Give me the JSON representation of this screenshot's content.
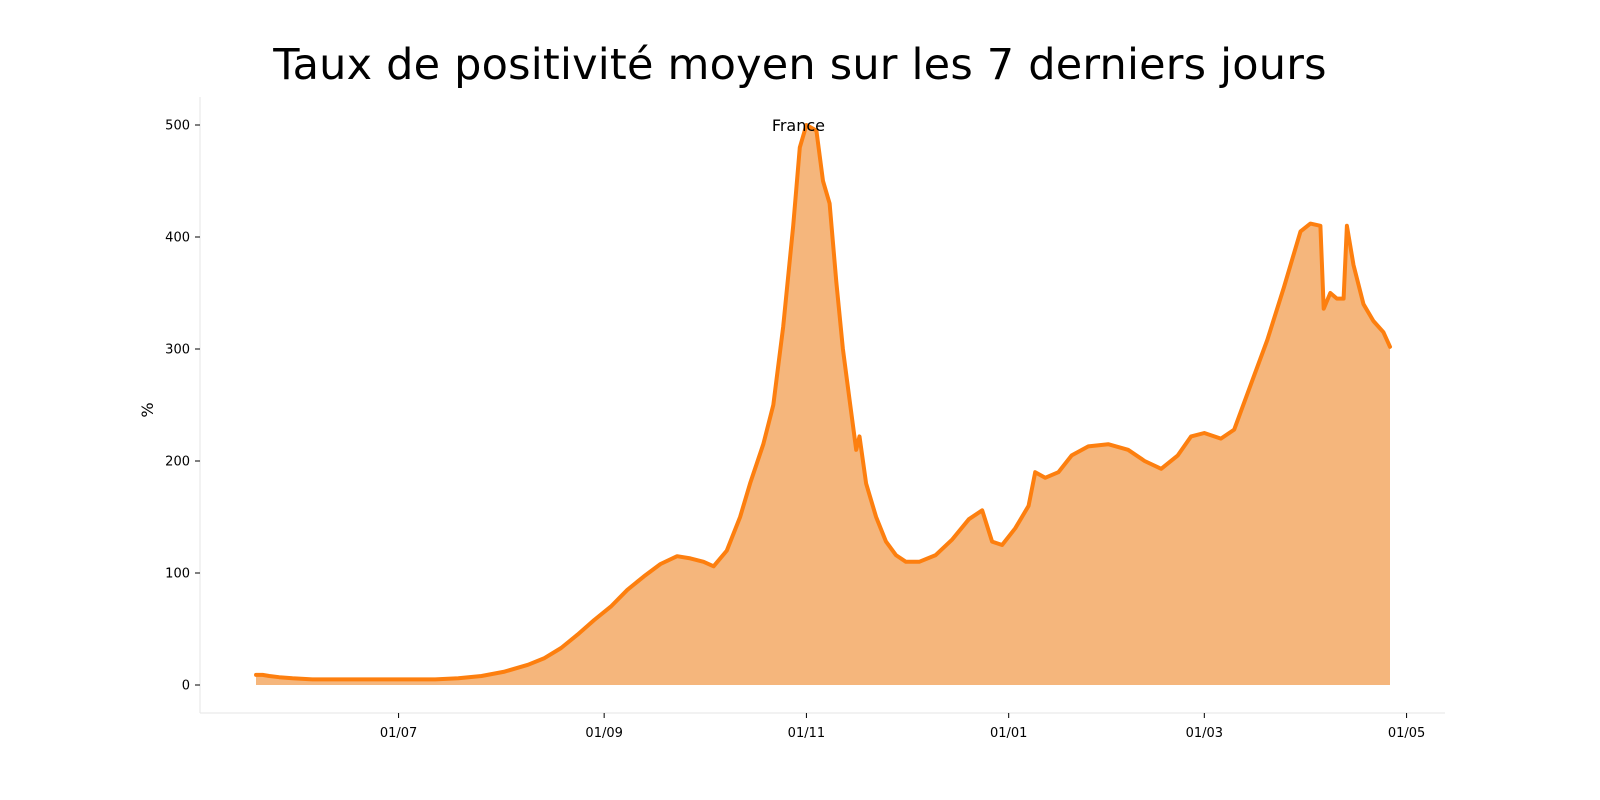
{
  "chart_data": {
    "type": "area",
    "title": "Taux de positivité moyen sur les 7 derniers jours",
    "xlabel": "",
    "ylabel": "%",
    "ylim": [
      -25,
      525
    ],
    "yticks": [
      0,
      100,
      200,
      300,
      400,
      500
    ],
    "x_start": "2020-05-19",
    "x_end": "2021-04-26",
    "xticks": [
      {
        "date": "2020-07-01",
        "label": "01/07"
      },
      {
        "date": "2020-09-01",
        "label": "01/09"
      },
      {
        "date": "2020-11-01",
        "label": "01/11"
      },
      {
        "date": "2021-01-01",
        "label": "01/01"
      },
      {
        "date": "2021-03-01",
        "label": "01/03"
      },
      {
        "date": "2021-05-01",
        "label": "01/05"
      }
    ],
    "grid": false,
    "colors": {
      "line": "#fd7f0f",
      "fill": "#f5b67c"
    },
    "series": [
      {
        "name": "France",
        "points": [
          [
            "2020-05-19",
            9
          ],
          [
            "2020-05-21",
            9
          ],
          [
            "2020-05-23",
            8
          ],
          [
            "2020-05-26",
            7
          ],
          [
            "2020-05-30",
            6
          ],
          [
            "2020-06-05",
            5
          ],
          [
            "2020-06-12",
            5
          ],
          [
            "2020-06-20",
            5
          ],
          [
            "2020-06-28",
            5
          ],
          [
            "2020-07-05",
            5
          ],
          [
            "2020-07-12",
            5
          ],
          [
            "2020-07-19",
            6
          ],
          [
            "2020-07-26",
            8
          ],
          [
            "2020-08-02",
            12
          ],
          [
            "2020-08-09",
            18
          ],
          [
            "2020-08-14",
            24
          ],
          [
            "2020-08-19",
            33
          ],
          [
            "2020-08-24",
            45
          ],
          [
            "2020-08-29",
            58
          ],
          [
            "2020-09-03",
            70
          ],
          [
            "2020-09-08",
            85
          ],
          [
            "2020-09-13",
            97
          ],
          [
            "2020-09-18",
            108
          ],
          [
            "2020-09-23",
            115
          ],
          [
            "2020-09-27",
            113
          ],
          [
            "2020-10-01",
            110
          ],
          [
            "2020-10-04",
            106
          ],
          [
            "2020-10-08",
            120
          ],
          [
            "2020-10-12",
            150
          ],
          [
            "2020-10-15",
            180
          ],
          [
            "2020-10-19",
            215
          ],
          [
            "2020-10-22",
            250
          ],
          [
            "2020-10-25",
            320
          ],
          [
            "2020-10-28",
            410
          ],
          [
            "2020-10-30",
            480
          ],
          [
            "2020-11-01",
            500
          ],
          [
            "2020-11-04",
            495
          ],
          [
            "2020-11-06",
            450
          ],
          [
            "2020-11-08",
            430
          ],
          [
            "2020-11-10",
            360
          ],
          [
            "2020-11-12",
            300
          ],
          [
            "2020-11-14",
            255
          ],
          [
            "2020-11-16",
            210
          ],
          [
            "2020-11-17",
            222
          ],
          [
            "2020-11-19",
            180
          ],
          [
            "2020-11-22",
            150
          ],
          [
            "2020-11-25",
            128
          ],
          [
            "2020-11-28",
            116
          ],
          [
            "2020-12-01",
            110
          ],
          [
            "2020-12-05",
            110
          ],
          [
            "2020-12-10",
            116
          ],
          [
            "2020-12-15",
            130
          ],
          [
            "2020-12-20",
            148
          ],
          [
            "2020-12-24",
            156
          ],
          [
            "2020-12-27",
            128
          ],
          [
            "2020-12-30",
            125
          ],
          [
            "2021-01-03",
            140
          ],
          [
            "2021-01-07",
            160
          ],
          [
            "2021-01-09",
            190
          ],
          [
            "2021-01-12",
            185
          ],
          [
            "2021-01-16",
            190
          ],
          [
            "2021-01-20",
            205
          ],
          [
            "2021-01-25",
            213
          ],
          [
            "2021-01-31",
            215
          ],
          [
            "2021-02-06",
            210
          ],
          [
            "2021-02-11",
            200
          ],
          [
            "2021-02-16",
            193
          ],
          [
            "2021-02-21",
            205
          ],
          [
            "2021-02-25",
            222
          ],
          [
            "2021-03-01",
            225
          ],
          [
            "2021-03-06",
            220
          ],
          [
            "2021-03-10",
            228
          ],
          [
            "2021-03-15",
            268
          ],
          [
            "2021-03-20",
            308
          ],
          [
            "2021-03-25",
            355
          ],
          [
            "2021-03-30",
            405
          ],
          [
            "2021-04-02",
            412
          ],
          [
            "2021-04-05",
            410
          ],
          [
            "2021-04-06",
            336
          ],
          [
            "2021-04-08",
            350
          ],
          [
            "2021-04-10",
            345
          ],
          [
            "2021-04-12",
            345
          ],
          [
            "2021-04-13",
            410
          ],
          [
            "2021-04-15",
            375
          ],
          [
            "2021-04-18",
            340
          ],
          [
            "2021-04-21",
            325
          ],
          [
            "2021-04-24",
            315
          ],
          [
            "2021-04-26",
            302
          ]
        ]
      }
    ]
  }
}
